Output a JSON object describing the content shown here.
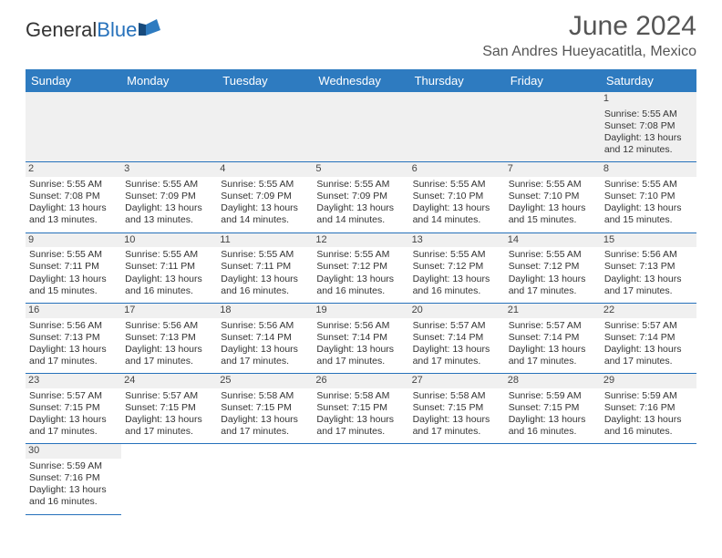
{
  "logo": {
    "text1": "General",
    "text2": "Blue",
    "color1": "#333333",
    "color2": "#2671bb"
  },
  "title": "June 2024",
  "location": "San Andres Hueyacatitla, Mexico",
  "header_bg": "#2e7bc0",
  "day_border": "#2671bb",
  "daynum_bg": "#f0f0f0",
  "weekdays": [
    "Sunday",
    "Monday",
    "Tuesday",
    "Wednesday",
    "Thursday",
    "Friday",
    "Saturday"
  ],
  "rows": [
    [
      null,
      null,
      null,
      null,
      null,
      null,
      {
        "n": "1",
        "sr": "Sunrise: 5:55 AM",
        "ss": "Sunset: 7:08 PM",
        "dl": "Daylight: 13 hours and 12 minutes."
      }
    ],
    [
      {
        "n": "2",
        "sr": "Sunrise: 5:55 AM",
        "ss": "Sunset: 7:08 PM",
        "dl": "Daylight: 13 hours and 13 minutes."
      },
      {
        "n": "3",
        "sr": "Sunrise: 5:55 AM",
        "ss": "Sunset: 7:09 PM",
        "dl": "Daylight: 13 hours and 13 minutes."
      },
      {
        "n": "4",
        "sr": "Sunrise: 5:55 AM",
        "ss": "Sunset: 7:09 PM",
        "dl": "Daylight: 13 hours and 14 minutes."
      },
      {
        "n": "5",
        "sr": "Sunrise: 5:55 AM",
        "ss": "Sunset: 7:09 PM",
        "dl": "Daylight: 13 hours and 14 minutes."
      },
      {
        "n": "6",
        "sr": "Sunrise: 5:55 AM",
        "ss": "Sunset: 7:10 PM",
        "dl": "Daylight: 13 hours and 14 minutes."
      },
      {
        "n": "7",
        "sr": "Sunrise: 5:55 AM",
        "ss": "Sunset: 7:10 PM",
        "dl": "Daylight: 13 hours and 15 minutes."
      },
      {
        "n": "8",
        "sr": "Sunrise: 5:55 AM",
        "ss": "Sunset: 7:10 PM",
        "dl": "Daylight: 13 hours and 15 minutes."
      }
    ],
    [
      {
        "n": "9",
        "sr": "Sunrise: 5:55 AM",
        "ss": "Sunset: 7:11 PM",
        "dl": "Daylight: 13 hours and 15 minutes."
      },
      {
        "n": "10",
        "sr": "Sunrise: 5:55 AM",
        "ss": "Sunset: 7:11 PM",
        "dl": "Daylight: 13 hours and 16 minutes."
      },
      {
        "n": "11",
        "sr": "Sunrise: 5:55 AM",
        "ss": "Sunset: 7:11 PM",
        "dl": "Daylight: 13 hours and 16 minutes."
      },
      {
        "n": "12",
        "sr": "Sunrise: 5:55 AM",
        "ss": "Sunset: 7:12 PM",
        "dl": "Daylight: 13 hours and 16 minutes."
      },
      {
        "n": "13",
        "sr": "Sunrise: 5:55 AM",
        "ss": "Sunset: 7:12 PM",
        "dl": "Daylight: 13 hours and 16 minutes."
      },
      {
        "n": "14",
        "sr": "Sunrise: 5:55 AM",
        "ss": "Sunset: 7:12 PM",
        "dl": "Daylight: 13 hours and 17 minutes."
      },
      {
        "n": "15",
        "sr": "Sunrise: 5:56 AM",
        "ss": "Sunset: 7:13 PM",
        "dl": "Daylight: 13 hours and 17 minutes."
      }
    ],
    [
      {
        "n": "16",
        "sr": "Sunrise: 5:56 AM",
        "ss": "Sunset: 7:13 PM",
        "dl": "Daylight: 13 hours and 17 minutes."
      },
      {
        "n": "17",
        "sr": "Sunrise: 5:56 AM",
        "ss": "Sunset: 7:13 PM",
        "dl": "Daylight: 13 hours and 17 minutes."
      },
      {
        "n": "18",
        "sr": "Sunrise: 5:56 AM",
        "ss": "Sunset: 7:14 PM",
        "dl": "Daylight: 13 hours and 17 minutes."
      },
      {
        "n": "19",
        "sr": "Sunrise: 5:56 AM",
        "ss": "Sunset: 7:14 PM",
        "dl": "Daylight: 13 hours and 17 minutes."
      },
      {
        "n": "20",
        "sr": "Sunrise: 5:57 AM",
        "ss": "Sunset: 7:14 PM",
        "dl": "Daylight: 13 hours and 17 minutes."
      },
      {
        "n": "21",
        "sr": "Sunrise: 5:57 AM",
        "ss": "Sunset: 7:14 PM",
        "dl": "Daylight: 13 hours and 17 minutes."
      },
      {
        "n": "22",
        "sr": "Sunrise: 5:57 AM",
        "ss": "Sunset: 7:14 PM",
        "dl": "Daylight: 13 hours and 17 minutes."
      }
    ],
    [
      {
        "n": "23",
        "sr": "Sunrise: 5:57 AM",
        "ss": "Sunset: 7:15 PM",
        "dl": "Daylight: 13 hours and 17 minutes."
      },
      {
        "n": "24",
        "sr": "Sunrise: 5:57 AM",
        "ss": "Sunset: 7:15 PM",
        "dl": "Daylight: 13 hours and 17 minutes."
      },
      {
        "n": "25",
        "sr": "Sunrise: 5:58 AM",
        "ss": "Sunset: 7:15 PM",
        "dl": "Daylight: 13 hours and 17 minutes."
      },
      {
        "n": "26",
        "sr": "Sunrise: 5:58 AM",
        "ss": "Sunset: 7:15 PM",
        "dl": "Daylight: 13 hours and 17 minutes."
      },
      {
        "n": "27",
        "sr": "Sunrise: 5:58 AM",
        "ss": "Sunset: 7:15 PM",
        "dl": "Daylight: 13 hours and 17 minutes."
      },
      {
        "n": "28",
        "sr": "Sunrise: 5:59 AM",
        "ss": "Sunset: 7:15 PM",
        "dl": "Daylight: 13 hours and 16 minutes."
      },
      {
        "n": "29",
        "sr": "Sunrise: 5:59 AM",
        "ss": "Sunset: 7:16 PM",
        "dl": "Daylight: 13 hours and 16 minutes."
      }
    ],
    [
      {
        "n": "30",
        "sr": "Sunrise: 5:59 AM",
        "ss": "Sunset: 7:16 PM",
        "dl": "Daylight: 13 hours and 16 minutes."
      },
      null,
      null,
      null,
      null,
      null,
      null
    ]
  ]
}
